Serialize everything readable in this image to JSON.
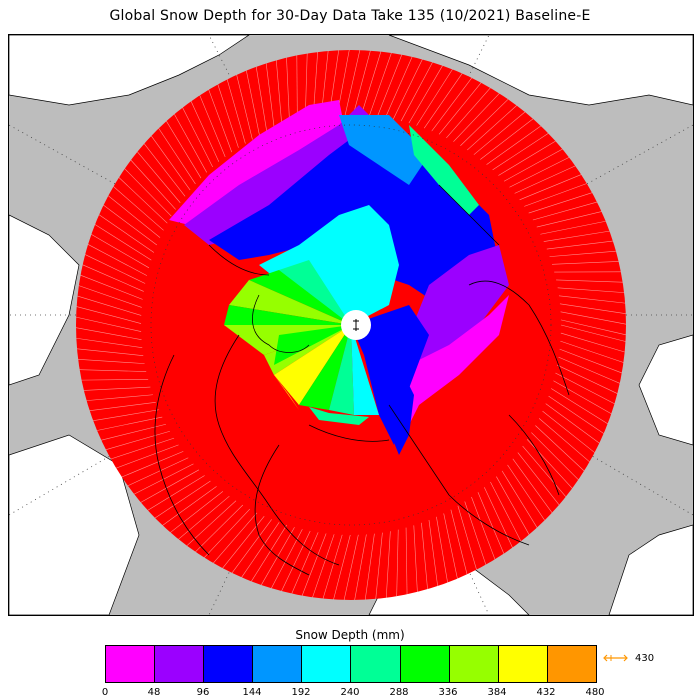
{
  "title": "Global Snow Depth for 30-Day Data Take 135 (10/2021) Baseline-E",
  "legend": {
    "title": "Snow Depth (mm)",
    "colors": [
      "#ff00ff",
      "#9b00ff",
      "#0000ff",
      "#0096ff",
      "#00ffff",
      "#00ff96",
      "#00ff00",
      "#96ff00",
      "#ffff00",
      "#ff9600"
    ],
    "ticks": [
      "0",
      "48",
      "96",
      "144",
      "192",
      "240",
      "288",
      "336",
      "384",
      "432",
      "480"
    ],
    "overflow": {
      "label": "430",
      "arrow_color": "#ff9600",
      "icon": "double-arrow-icon"
    }
  },
  "map": {
    "projection": "north polar stereographic",
    "ocean_color": "#ffffff",
    "land_outside_color": "#bdbdbd",
    "missing_color": "#ff0000",
    "coastline_color": "#000000"
  }
}
